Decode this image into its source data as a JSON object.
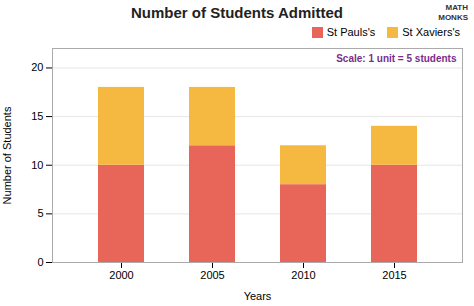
{
  "chart_data": {
    "type": "bar",
    "title": "Number of Students Admitted",
    "xlabel": "Years",
    "ylabel": "Number of Students",
    "categories": [
      "2000",
      "2005",
      "2010",
      "2015"
    ],
    "series": [
      {
        "name": "St Pauls's",
        "color": "#E8655A",
        "values": [
          10,
          12,
          8,
          10
        ]
      },
      {
        "name": "St Xaviers's",
        "color": "#F5B942",
        "values": [
          8,
          6,
          4,
          4
        ]
      }
    ],
    "stacked": true,
    "ylim": [
      0,
      22
    ],
    "yticks": [
      0,
      5,
      10,
      15,
      20
    ],
    "grid": true,
    "legend": "upper right",
    "annotations": [
      {
        "text": "Scale: 1 unit = 5 students",
        "color": "#7B2D8B"
      },
      {
        "text": "MATH\nMONKS"
      }
    ]
  }
}
